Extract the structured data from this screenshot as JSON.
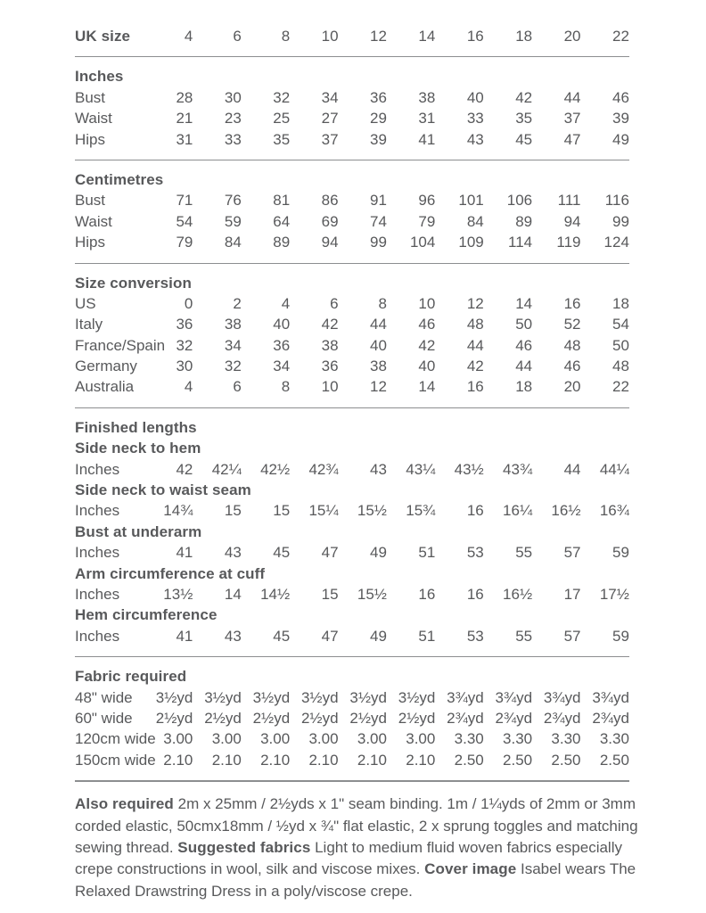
{
  "page": {
    "background": "#ffffff",
    "text_color": "#58595b",
    "rule_color": "#8c8e90"
  },
  "size_chart": {
    "rows": [
      {
        "type": "header",
        "label": "UK size",
        "values": [
          "4",
          "6",
          "8",
          "10",
          "12",
          "14",
          "16",
          "18",
          "20",
          "22"
        ]
      },
      {
        "type": "rule"
      },
      {
        "type": "section",
        "label": "Inches"
      },
      {
        "type": "data",
        "label": "Bust",
        "values": [
          "28",
          "30",
          "32",
          "34",
          "36",
          "38",
          "40",
          "42",
          "44",
          "46"
        ]
      },
      {
        "type": "data",
        "label": "Waist",
        "values": [
          "21",
          "23",
          "25",
          "27",
          "29",
          "31",
          "33",
          "35",
          "37",
          "39"
        ]
      },
      {
        "type": "data",
        "label": "Hips",
        "values": [
          "31",
          "33",
          "35",
          "37",
          "39",
          "41",
          "43",
          "45",
          "47",
          "49"
        ]
      },
      {
        "type": "rule"
      },
      {
        "type": "section",
        "label": "Centimetres"
      },
      {
        "type": "data",
        "label": "Bust",
        "values": [
          "71",
          "76",
          "81",
          "86",
          "91",
          "96",
          "101",
          "106",
          "111",
          "116"
        ]
      },
      {
        "type": "data",
        "label": "Waist",
        "values": [
          "54",
          "59",
          "64",
          "69",
          "74",
          "79",
          "84",
          "89",
          "94",
          "99"
        ]
      },
      {
        "type": "data",
        "label": "Hips",
        "values": [
          "79",
          "84",
          "89",
          "94",
          "99",
          "104",
          "109",
          "114",
          "119",
          "124"
        ]
      },
      {
        "type": "rule"
      },
      {
        "type": "section",
        "label": "Size conversion"
      },
      {
        "type": "data",
        "label": "US",
        "values": [
          "0",
          "2",
          "4",
          "6",
          "8",
          "10",
          "12",
          "14",
          "16",
          "18"
        ]
      },
      {
        "type": "data",
        "label": "Italy",
        "values": [
          "36",
          "38",
          "40",
          "42",
          "44",
          "46",
          "48",
          "50",
          "52",
          "54"
        ]
      },
      {
        "type": "data",
        "label": "France/Spain",
        "values": [
          "32",
          "34",
          "36",
          "38",
          "40",
          "42",
          "44",
          "46",
          "48",
          "50"
        ]
      },
      {
        "type": "data",
        "label": "Germany",
        "values": [
          "30",
          "32",
          "34",
          "36",
          "38",
          "40",
          "42",
          "44",
          "46",
          "48"
        ]
      },
      {
        "type": "data",
        "label": "Australia",
        "values": [
          "4",
          "6",
          "8",
          "10",
          "12",
          "14",
          "16",
          "18",
          "20",
          "22"
        ]
      },
      {
        "type": "rule"
      },
      {
        "type": "section",
        "label": "Finished lengths"
      },
      {
        "type": "section",
        "label": "Side neck to hem"
      },
      {
        "type": "data",
        "label": "Inches",
        "values": [
          "42",
          "42¼",
          "42½",
          "42¾",
          "43",
          "43¼",
          "43½",
          "43¾",
          "44",
          "44¼"
        ]
      },
      {
        "type": "section",
        "label": "Side neck to waist seam"
      },
      {
        "type": "data",
        "label": "Inches",
        "values": [
          "14¾",
          "15",
          "15",
          "15¼",
          "15½",
          "15¾",
          "16",
          "16¼",
          "16½",
          "16¾"
        ]
      },
      {
        "type": "section",
        "label": "Bust at underarm"
      },
      {
        "type": "data",
        "label": "Inches",
        "values": [
          "41",
          "43",
          "45",
          "47",
          "49",
          "51",
          "53",
          "55",
          "57",
          "59"
        ]
      },
      {
        "type": "section",
        "label": "Arm circumference at cuff"
      },
      {
        "type": "data",
        "label": "Inches",
        "values": [
          "13½",
          "14",
          "14½",
          "15",
          "15½",
          "16",
          "16",
          "16½",
          "17",
          "17½"
        ]
      },
      {
        "type": "section",
        "label": "Hem circumference"
      },
      {
        "type": "data",
        "label": "Inches",
        "values": [
          "41",
          "43",
          "45",
          "47",
          "49",
          "51",
          "53",
          "55",
          "57",
          "59"
        ]
      },
      {
        "type": "rule"
      },
      {
        "type": "section",
        "label": "Fabric required"
      },
      {
        "type": "data",
        "label": "48\" wide",
        "values": [
          "3½yd",
          "3½yd",
          "3½yd",
          "3½yd",
          "3½yd",
          "3½yd",
          "3¾yd",
          "3¾yd",
          "3¾yd",
          "3¾yd"
        ]
      },
      {
        "type": "data",
        "label": "60\" wide",
        "values": [
          "2½yd",
          "2½yd",
          "2½yd",
          "2½yd",
          "2½yd",
          "2½yd",
          "2¾yd",
          "2¾yd",
          "2¾yd",
          "2¾yd"
        ]
      },
      {
        "type": "data",
        "label": "120cm wide",
        "values": [
          "3.00",
          "3.00",
          "3.00",
          "3.00",
          "3.00",
          "3.00",
          "3.30",
          "3.30",
          "3.30",
          "3.30"
        ]
      },
      {
        "type": "data",
        "label": "150cm wide",
        "values": [
          "2.10",
          "2.10",
          "2.10",
          "2.10",
          "2.10",
          "2.10",
          "2.50",
          "2.50",
          "2.50",
          "2.50"
        ]
      },
      {
        "type": "rule",
        "weight": "thick"
      }
    ]
  },
  "notes": {
    "segments": [
      {
        "text": "Also required",
        "bold": true
      },
      {
        "text": " 2m x 25mm / 2½yds x 1\" seam binding. 1m / 1¼yds of 2mm or 3mm corded elastic, 50cmx18mm / ½yd x ¾\" flat elastic, 2 x sprung toggles and matching sewing thread. ",
        "bold": false
      },
      {
        "text": "Suggested fabrics",
        "bold": true
      },
      {
        "text": " Light to medium fluid woven fabrics especially crepe constructions in wool, silk and viscose mixes. ",
        "bold": false
      },
      {
        "text": "Cover image",
        "bold": true
      },
      {
        "text": " Isabel wears The Relaxed Drawstring Dress in a poly/viscose crepe.",
        "bold": false
      }
    ]
  }
}
